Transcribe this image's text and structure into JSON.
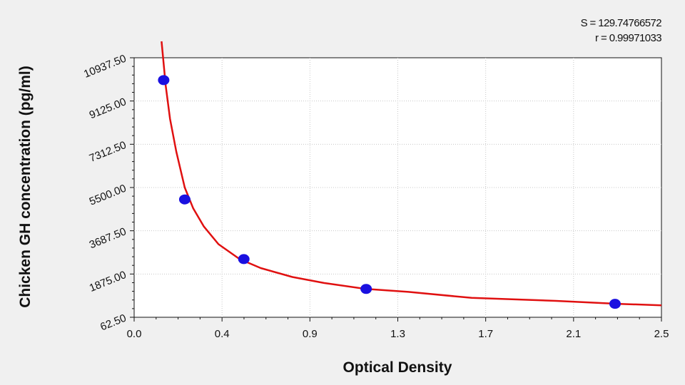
{
  "stats": {
    "s_text": "S = 129.74766572",
    "r_text": "r = 0.99971033"
  },
  "chart_data": {
    "type": "scatter",
    "title": "",
    "xlabel": "Optical Density",
    "ylabel": "Chicken GH concentration (pg/ml)",
    "xlim": [
      0.0,
      2.5
    ],
    "ylim": [
      62.5,
      10937.5
    ],
    "x_ticks": [
      "0.0",
      "0.4",
      "0.9",
      "1.3",
      "1.7",
      "2.1",
      "2.5"
    ],
    "y_ticks": [
      "62.50",
      "1875.00",
      "3687.50",
      "5500.00",
      "7312.50",
      "9125.00",
      "10937.50"
    ],
    "grid": true,
    "series": [
      {
        "points": [
          {
            "x": 0.14,
            "y": 10000
          },
          {
            "x": 0.24,
            "y": 5000
          },
          {
            "x": 0.52,
            "y": 2500
          },
          {
            "x": 1.1,
            "y": 1250
          },
          {
            "x": 2.28,
            "y": 625
          }
        ]
      }
    ],
    "fit_curve": [
      {
        "x": 0.13,
        "y": 11625
      },
      {
        "x": 0.15,
        "y": 9750
      },
      {
        "x": 0.17,
        "y": 8375
      },
      {
        "x": 0.2,
        "y": 7000
      },
      {
        "x": 0.24,
        "y": 5500
      },
      {
        "x": 0.28,
        "y": 4625
      },
      {
        "x": 0.33,
        "y": 3875
      },
      {
        "x": 0.4,
        "y": 3125
      },
      {
        "x": 0.5,
        "y": 2500
      },
      {
        "x": 0.6,
        "y": 2125
      },
      {
        "x": 0.75,
        "y": 1750
      },
      {
        "x": 0.9,
        "y": 1500
      },
      {
        "x": 1.1,
        "y": 1250
      },
      {
        "x": 1.3,
        "y": 1125
      },
      {
        "x": 1.6,
        "y": 875
      },
      {
        "x": 2.0,
        "y": 750
      },
      {
        "x": 2.3,
        "y": 625
      },
      {
        "x": 2.5,
        "y": 563
      }
    ],
    "colors": {
      "points": "#1a10e0",
      "curve": "#e01010",
      "grid": "#c8c8c8",
      "plot_bg": "#ffffff",
      "page_bg": "#f0f0f0"
    }
  }
}
